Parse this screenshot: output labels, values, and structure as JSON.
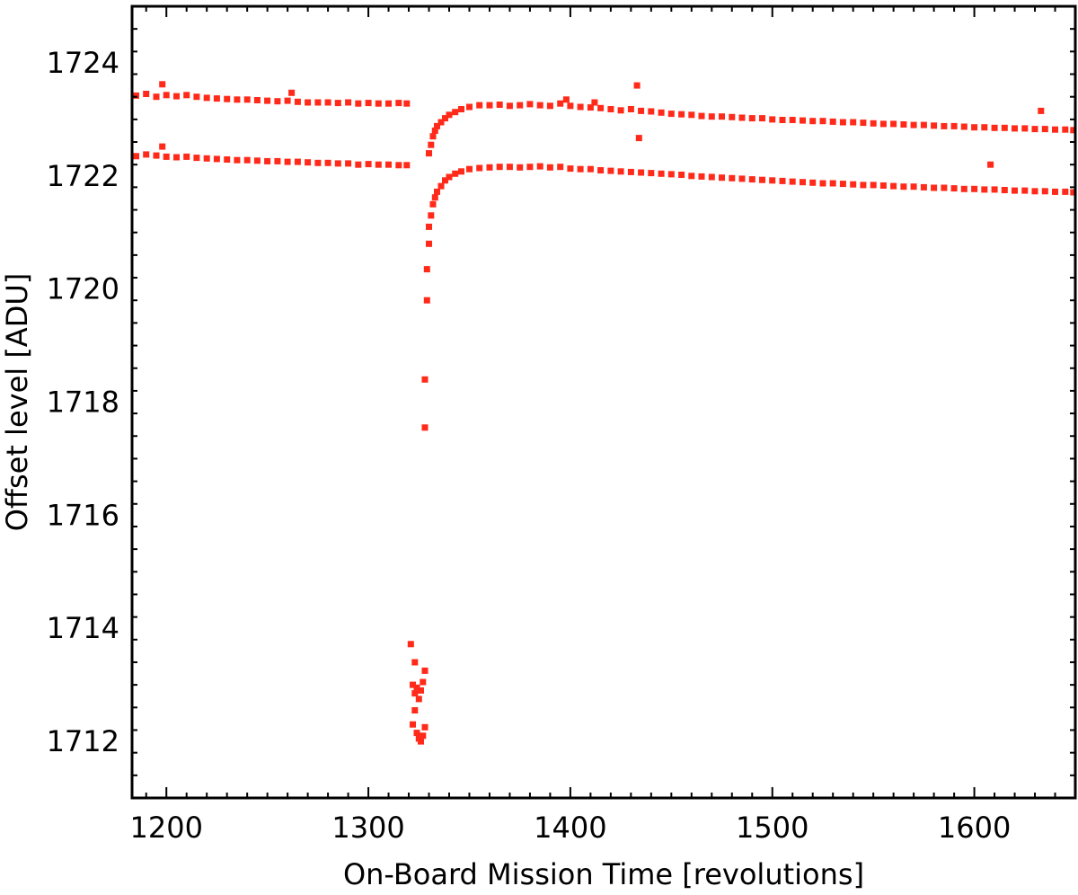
{
  "chart_data": {
    "type": "scatter",
    "title": "",
    "xlabel": "On-Board Mission Time [revolutions]",
    "ylabel": "Offset level [ADU]",
    "xlim": [
      1183,
      1650
    ],
    "ylim": [
      1711,
      1725
    ],
    "xticks": [
      1200,
      1300,
      1400,
      1500,
      1600
    ],
    "yticks": [
      1712,
      1714,
      1716,
      1718,
      1720,
      1722,
      1724
    ],
    "grid": false,
    "legend": "none",
    "marker_color": "#ff2a1a",
    "series": [
      {
        "points": [
          [
            1185,
            1723.42
          ],
          [
            1190,
            1723.45
          ],
          [
            1195,
            1723.4
          ],
          [
            1198,
            1723.62
          ],
          [
            1200,
            1723.43
          ],
          [
            1205,
            1723.41
          ],
          [
            1210,
            1723.43
          ],
          [
            1215,
            1723.4
          ],
          [
            1220,
            1723.38
          ],
          [
            1225,
            1723.37
          ],
          [
            1230,
            1723.36
          ],
          [
            1235,
            1723.35
          ],
          [
            1240,
            1723.35
          ],
          [
            1245,
            1723.34
          ],
          [
            1250,
            1723.33
          ],
          [
            1255,
            1723.32
          ],
          [
            1260,
            1723.33
          ],
          [
            1262,
            1723.47
          ],
          [
            1265,
            1723.31
          ],
          [
            1270,
            1723.3
          ],
          [
            1275,
            1723.3
          ],
          [
            1280,
            1723.3
          ],
          [
            1285,
            1723.29
          ],
          [
            1290,
            1723.3
          ],
          [
            1295,
            1723.28
          ],
          [
            1300,
            1723.29
          ],
          [
            1305,
            1723.28
          ],
          [
            1310,
            1723.28
          ],
          [
            1315,
            1723.29
          ],
          [
            1319,
            1723.28
          ],
          [
            1330,
            1722.4
          ],
          [
            1331,
            1722.55
          ],
          [
            1332,
            1722.7
          ],
          [
            1333,
            1722.8
          ],
          [
            1334,
            1722.88
          ],
          [
            1336,
            1722.95
          ],
          [
            1338,
            1723.02
          ],
          [
            1340,
            1723.08
          ],
          [
            1343,
            1723.13
          ],
          [
            1346,
            1723.18
          ],
          [
            1350,
            1723.22
          ],
          [
            1355,
            1723.25
          ],
          [
            1360,
            1723.25
          ],
          [
            1365,
            1723.26
          ],
          [
            1370,
            1723.24
          ],
          [
            1375,
            1723.25
          ],
          [
            1380,
            1723.27
          ],
          [
            1385,
            1723.25
          ],
          [
            1390,
            1723.24
          ],
          [
            1395,
            1723.28
          ],
          [
            1398,
            1723.35
          ],
          [
            1400,
            1723.24
          ],
          [
            1405,
            1723.22
          ],
          [
            1410,
            1723.21
          ],
          [
            1412,
            1723.3
          ],
          [
            1415,
            1723.2
          ],
          [
            1420,
            1723.18
          ],
          [
            1425,
            1723.16
          ],
          [
            1430,
            1723.18
          ],
          [
            1433,
            1723.6
          ],
          [
            1434,
            1722.67
          ],
          [
            1435,
            1723.15
          ],
          [
            1440,
            1723.14
          ],
          [
            1445,
            1723.12
          ],
          [
            1450,
            1723.1
          ],
          [
            1455,
            1723.09
          ],
          [
            1460,
            1723.08
          ],
          [
            1465,
            1723.06
          ],
          [
            1470,
            1723.05
          ],
          [
            1475,
            1723.05
          ],
          [
            1480,
            1723.04
          ],
          [
            1485,
            1723.03
          ],
          [
            1490,
            1723.02
          ],
          [
            1495,
            1723.02
          ],
          [
            1500,
            1723.0
          ],
          [
            1505,
            1722.99
          ],
          [
            1510,
            1722.99
          ],
          [
            1515,
            1722.98
          ],
          [
            1520,
            1722.97
          ],
          [
            1525,
            1722.97
          ],
          [
            1530,
            1722.96
          ],
          [
            1535,
            1722.95
          ],
          [
            1540,
            1722.95
          ],
          [
            1545,
            1722.94
          ],
          [
            1550,
            1722.93
          ],
          [
            1555,
            1722.92
          ],
          [
            1560,
            1722.92
          ],
          [
            1565,
            1722.91
          ],
          [
            1570,
            1722.9
          ],
          [
            1575,
            1722.9
          ],
          [
            1580,
            1722.89
          ],
          [
            1585,
            1722.88
          ],
          [
            1590,
            1722.88
          ],
          [
            1595,
            1722.87
          ],
          [
            1600,
            1722.86
          ],
          [
            1605,
            1722.86
          ],
          [
            1610,
            1722.85
          ],
          [
            1615,
            1722.85
          ],
          [
            1620,
            1722.84
          ],
          [
            1625,
            1722.84
          ],
          [
            1630,
            1722.83
          ],
          [
            1633,
            1723.15
          ],
          [
            1635,
            1722.83
          ],
          [
            1640,
            1722.82
          ],
          [
            1645,
            1722.82
          ],
          [
            1649,
            1722.81
          ]
        ]
      },
      {
        "points": [
          [
            1185,
            1722.35
          ],
          [
            1190,
            1722.38
          ],
          [
            1195,
            1722.36
          ],
          [
            1198,
            1722.52
          ],
          [
            1200,
            1722.34
          ],
          [
            1205,
            1722.33
          ],
          [
            1210,
            1722.34
          ],
          [
            1215,
            1722.32
          ],
          [
            1220,
            1722.31
          ],
          [
            1225,
            1722.3
          ],
          [
            1230,
            1722.29
          ],
          [
            1235,
            1722.28
          ],
          [
            1240,
            1722.28
          ],
          [
            1245,
            1722.27
          ],
          [
            1250,
            1722.26
          ],
          [
            1255,
            1722.26
          ],
          [
            1260,
            1722.25
          ],
          [
            1265,
            1722.25
          ],
          [
            1270,
            1722.24
          ],
          [
            1275,
            1722.23
          ],
          [
            1280,
            1722.23
          ],
          [
            1285,
            1722.22
          ],
          [
            1290,
            1722.22
          ],
          [
            1295,
            1722.2
          ],
          [
            1300,
            1722.21
          ],
          [
            1305,
            1722.2
          ],
          [
            1310,
            1722.2
          ],
          [
            1315,
            1722.19
          ],
          [
            1319,
            1722.19
          ],
          [
            1321,
            1713.72
          ],
          [
            1322,
            1713.0
          ],
          [
            1322,
            1712.3
          ],
          [
            1323,
            1712.85
          ],
          [
            1323,
            1712.55
          ],
          [
            1323,
            1713.4
          ],
          [
            1324,
            1712.15
          ],
          [
            1324,
            1712.95
          ],
          [
            1325,
            1712.05
          ],
          [
            1325,
            1712.75
          ],
          [
            1326,
            1712.0
          ],
          [
            1326,
            1712.9
          ],
          [
            1327,
            1712.1
          ],
          [
            1327,
            1713.05
          ],
          [
            1328,
            1712.25
          ],
          [
            1328,
            1713.25
          ],
          [
            1328,
            1717.55
          ],
          [
            1328,
            1718.4
          ],
          [
            1329,
            1719.8
          ],
          [
            1329,
            1720.35
          ],
          [
            1330,
            1720.8
          ],
          [
            1330,
            1721.1
          ],
          [
            1331,
            1721.3
          ],
          [
            1332,
            1721.5
          ],
          [
            1333,
            1721.62
          ],
          [
            1334,
            1721.72
          ],
          [
            1336,
            1721.82
          ],
          [
            1338,
            1721.92
          ],
          [
            1340,
            1721.98
          ],
          [
            1343,
            1722.04
          ],
          [
            1346,
            1722.08
          ],
          [
            1350,
            1722.12
          ],
          [
            1355,
            1722.14
          ],
          [
            1360,
            1722.15
          ],
          [
            1365,
            1722.16
          ],
          [
            1370,
            1722.16
          ],
          [
            1375,
            1722.15
          ],
          [
            1380,
            1722.16
          ],
          [
            1385,
            1722.17
          ],
          [
            1390,
            1722.15
          ],
          [
            1395,
            1722.16
          ],
          [
            1400,
            1722.13
          ],
          [
            1405,
            1722.12
          ],
          [
            1410,
            1722.12
          ],
          [
            1415,
            1722.1
          ],
          [
            1420,
            1722.09
          ],
          [
            1425,
            1722.08
          ],
          [
            1430,
            1722.07
          ],
          [
            1435,
            1722.06
          ],
          [
            1440,
            1722.05
          ],
          [
            1445,
            1722.04
          ],
          [
            1450,
            1722.03
          ],
          [
            1455,
            1722.02
          ],
          [
            1460,
            1722.0
          ],
          [
            1465,
            1721.99
          ],
          [
            1470,
            1721.98
          ],
          [
            1475,
            1721.97
          ],
          [
            1480,
            1721.96
          ],
          [
            1485,
            1721.95
          ],
          [
            1490,
            1721.94
          ],
          [
            1495,
            1721.93
          ],
          [
            1500,
            1721.92
          ],
          [
            1505,
            1721.91
          ],
          [
            1510,
            1721.9
          ],
          [
            1515,
            1721.89
          ],
          [
            1520,
            1721.88
          ],
          [
            1525,
            1721.87
          ],
          [
            1530,
            1721.87
          ],
          [
            1535,
            1721.86
          ],
          [
            1540,
            1721.85
          ],
          [
            1545,
            1721.84
          ],
          [
            1550,
            1721.84
          ],
          [
            1555,
            1721.83
          ],
          [
            1560,
            1721.82
          ],
          [
            1565,
            1721.81
          ],
          [
            1570,
            1721.81
          ],
          [
            1575,
            1721.8
          ],
          [
            1580,
            1721.79
          ],
          [
            1585,
            1721.79
          ],
          [
            1590,
            1721.78
          ],
          [
            1595,
            1721.77
          ],
          [
            1600,
            1721.77
          ],
          [
            1605,
            1721.76
          ],
          [
            1608,
            1722.2
          ],
          [
            1610,
            1721.76
          ],
          [
            1615,
            1721.75
          ],
          [
            1620,
            1721.74
          ],
          [
            1625,
            1721.74
          ],
          [
            1630,
            1721.73
          ],
          [
            1635,
            1721.73
          ],
          [
            1640,
            1721.72
          ],
          [
            1645,
            1721.72
          ],
          [
            1649,
            1721.71
          ]
        ]
      }
    ]
  }
}
